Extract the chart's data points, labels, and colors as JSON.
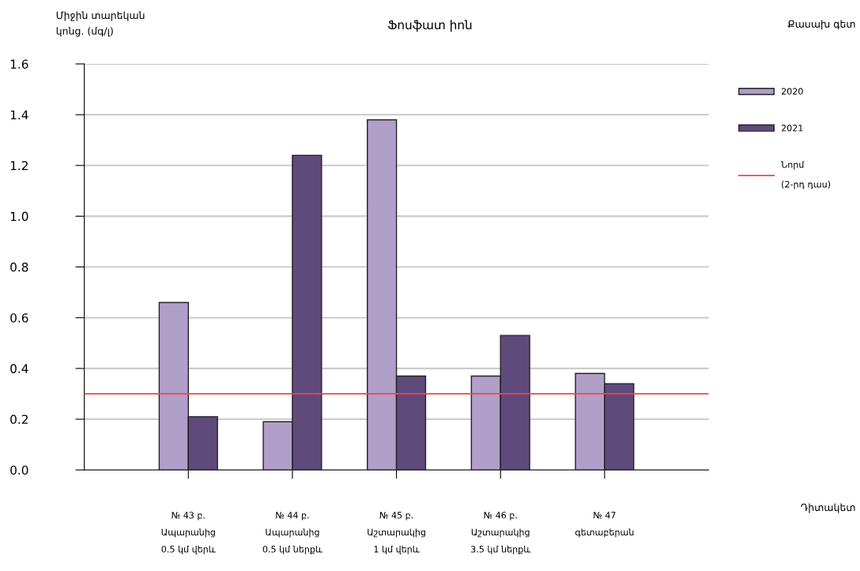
{
  "chart_data": {
    "type": "bar",
    "title": "Ֆոսֆատ իոն",
    "subtitle": "Քասախ գետ",
    "ylabel": "Միջին տարեկան\nկոնց. (մգ/լ)",
    "annotations": [
      "Դիտակետ"
    ],
    "categories": [
      "№ 43 բ.\n\nԱպարանից\n\n0.5 կմ վերև",
      "№ 44 բ.\n\nԱպարանից\n\n0.5 կմ ներքև",
      "№ 45 բ.\n\nԱշտարակից\n\n1 կմ վերև",
      "№ 46 բ.\n\nԱշտարակից\n\n3.5 կմ ներքև",
      "№ 47\n\nգետաբերան\n\n"
    ],
    "series": [
      {
        "name": "2020",
        "color": "#b09fc8",
        "values": [
          0.66,
          0.19,
          1.38,
          0.37,
          0.38
        ]
      },
      {
        "name": "2021",
        "color": "#5f4a7c",
        "values": [
          0.21,
          1.24,
          0.37,
          0.53,
          0.34
        ]
      }
    ],
    "ylim": [
      0,
      1.6
    ],
    "yticks": [
      {
        "value": 0,
        "label": "0.0"
      },
      0.2,
      0.4,
      0.6,
      0.8,
      {
        "value": 1.0,
        "label": "1.0"
      },
      1.2,
      1.4,
      1.6
    ],
    "ref_lines": [
      {
        "axis": "y",
        "value": 0.3,
        "label": "Նորմ\n\n(2-րդ դաս)",
        "color": "#ff4040"
      }
    ],
    "grid": "y",
    "legend": "right"
  }
}
